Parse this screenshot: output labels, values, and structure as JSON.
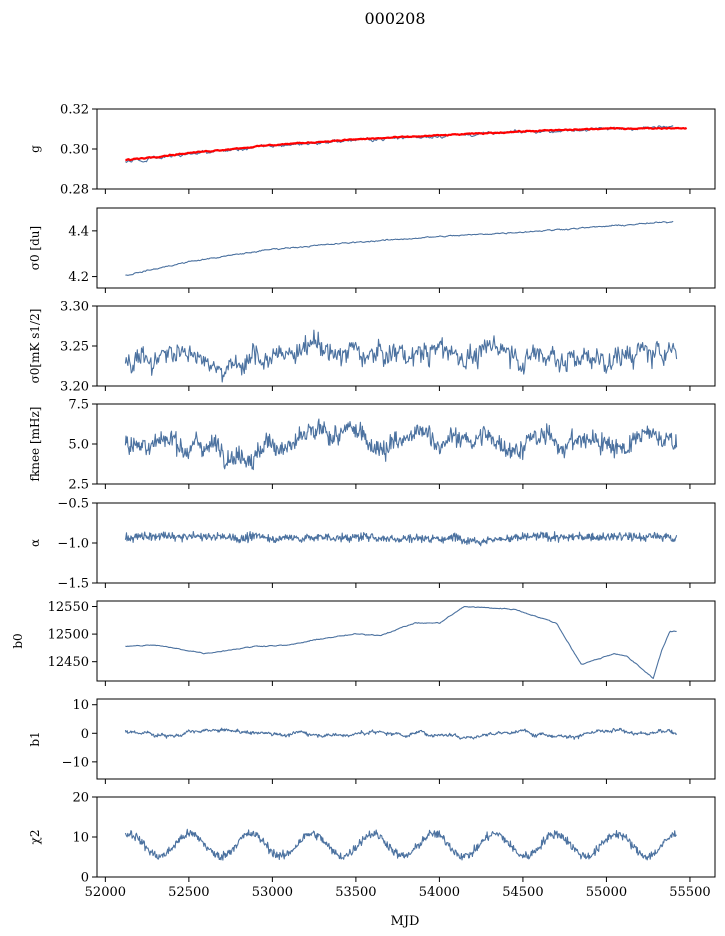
{
  "figure": {
    "title": "000208",
    "xlabel": "MJD",
    "xlim": [
      51950,
      55650
    ],
    "xticks": [
      52000,
      52500,
      53000,
      53500,
      54000,
      54500,
      55000,
      55500
    ],
    "x_range": [
      52120,
      55420
    ]
  },
  "colors": {
    "series": "#4c72a0",
    "fit": "#ff0000",
    "axis": "#000000"
  },
  "chart_data": [
    {
      "type": "line",
      "ylabel": "g",
      "ylim": [
        0.28,
        0.32
      ],
      "yticks": [
        "0.28",
        "0.30",
        "0.32"
      ],
      "series": [
        {
          "kind": "trend",
          "color": "#4c72a0",
          "x": [
            52120,
            52500,
            53000,
            53500,
            54000,
            54500,
            55000,
            55400
          ],
          "values": [
            0.2935,
            0.2975,
            0.3015,
            0.3045,
            0.3065,
            0.3085,
            0.31,
            0.311
          ],
          "noise": 0.0011
        },
        {
          "kind": "trend",
          "color": "#ff0000",
          "x": [
            52120,
            52500,
            53000,
            53500,
            54000,
            54500,
            55000,
            55480
          ],
          "values": [
            0.2945,
            0.298,
            0.302,
            0.3048,
            0.3068,
            0.3088,
            0.3102,
            0.3105
          ],
          "noise": 0.0004
        }
      ]
    },
    {
      "type": "line",
      "ylabel": "σ0 [du]",
      "ylim": [
        4.15,
        4.5
      ],
      "yticks": [
        "4.2",
        "4.4"
      ],
      "series": [
        {
          "kind": "trend",
          "color": "#4c72a0",
          "x": [
            52120,
            52500,
            53000,
            53500,
            54000,
            54500,
            55000,
            55400
          ],
          "values": [
            4.205,
            4.265,
            4.32,
            4.35,
            4.375,
            4.395,
            4.42,
            4.44
          ],
          "noise": 0.004
        }
      ]
    },
    {
      "type": "line",
      "ylabel": "σ0[mK s1/2]",
      "ylim": [
        3.2,
        3.3
      ],
      "yticks": [
        "3.20",
        "3.25",
        "3.30"
      ],
      "series": [
        {
          "kind": "noise",
          "color": "#4c72a0",
          "base": 3.24,
          "amplitude": 0.012,
          "wobble": 0.006,
          "points": 650
        }
      ]
    },
    {
      "type": "line",
      "ylabel": "fknee [mHz]",
      "ylim": [
        2.5,
        7.5
      ],
      "yticks": [
        "2.5",
        "5.0",
        "7.5"
      ],
      "series": [
        {
          "kind": "noise",
          "color": "#4c72a0",
          "base": 5.15,
          "amplitude": 0.55,
          "wobble": 0.25,
          "points": 850
        }
      ]
    },
    {
      "type": "line",
      "ylabel": "α",
      "ylim": [
        -1.5,
        -0.5
      ],
      "yticks": [
        "−1.5",
        "−1.0",
        "−0.5"
      ],
      "series": [
        {
          "kind": "noise",
          "color": "#4c72a0",
          "base": -0.93,
          "amplitude": 0.05,
          "wobble": 0.01,
          "points": 1000
        }
      ]
    },
    {
      "type": "line",
      "ylabel": "b0",
      "ylim": [
        12415,
        12560
      ],
      "yticks": [
        "12450",
        "12500",
        "12550"
      ],
      "series": [
        {
          "kind": "trend",
          "color": "#4c72a0",
          "x": [
            52120,
            52300,
            52600,
            52900,
            53100,
            53300,
            53500,
            53650,
            53850,
            54000,
            54150,
            54450,
            54700,
            54850,
            54950,
            55050,
            55120,
            55200,
            55280,
            55330,
            55380,
            55420
          ],
          "values": [
            12478,
            12480,
            12465,
            12478,
            12480,
            12492,
            12500,
            12498,
            12520,
            12520,
            12550,
            12545,
            12520,
            12445,
            12455,
            12465,
            12460,
            12440,
            12420,
            12470,
            12505,
            12505
          ],
          "noise": 1.2
        }
      ]
    },
    {
      "type": "line",
      "ylabel": "b1",
      "ylim": [
        -16,
        12
      ],
      "yticks": [
        "−10",
        "0",
        "10"
      ],
      "series": [
        {
          "kind": "noise",
          "color": "#4c72a0",
          "base": 0.2,
          "amplitude": 0.45,
          "wobble": 0.4,
          "points": 900
        }
      ]
    },
    {
      "type": "line",
      "ylabel": "χ2",
      "ylim": [
        0,
        20
      ],
      "yticks": [
        "0",
        "10",
        "20"
      ],
      "series": [
        {
          "kind": "seasonal",
          "color": "#4c72a0",
          "base": 8.0,
          "amplitude": 2.8,
          "period": 365,
          "noise": 1.1,
          "points": 900
        }
      ]
    }
  ]
}
